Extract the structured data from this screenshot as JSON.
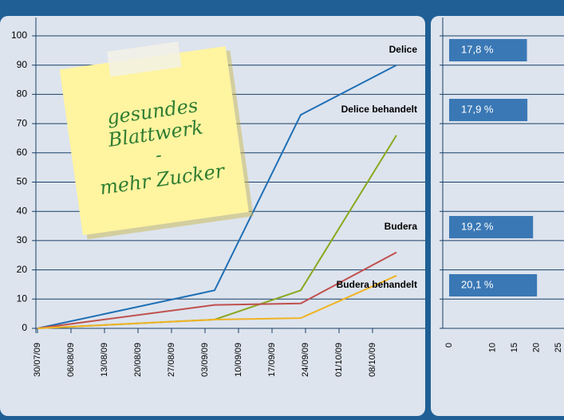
{
  "chart_data": [
    {
      "type": "line",
      "xlim": [
        "2009-07-30",
        "2009-10-18"
      ],
      "xticks": [
        {
          "value": "2009-07-30",
          "label": "30/07/09"
        },
        {
          "value": "2009-08-06",
          "label": "06/08/09"
        },
        {
          "value": "2009-08-13",
          "label": "13/08/09"
        },
        {
          "value": "2009-08-20",
          "label": "20/08/09"
        },
        {
          "value": "2009-08-27",
          "label": "27/08/09"
        },
        {
          "value": "2009-09-03",
          "label": "03/09/09"
        },
        {
          "value": "2009-09-10",
          "label": "10/09/09"
        },
        {
          "value": "2009-09-17",
          "label": "17/09/09"
        },
        {
          "value": "2009-09-24",
          "label": "24/09/09"
        },
        {
          "value": "2009-10-01",
          "label": "01/10/09"
        },
        {
          "value": "2009-10-08",
          "label": "08/10/09"
        }
      ],
      "ylim": [
        0,
        100
      ],
      "yticks": [
        0,
        10,
        20,
        30,
        40,
        50,
        60,
        70,
        80,
        90,
        100
      ],
      "grid": true,
      "x": [
        "2009-07-30",
        "2009-09-05",
        "2009-09-23",
        "2009-10-13"
      ],
      "series": [
        {
          "name": "Delice",
          "color": "#1f6fb4",
          "values": [
            0,
            13,
            73,
            90
          ]
        },
        {
          "name": "Delice behandelt",
          "color": "#8aa81e",
          "values": [
            0,
            3,
            13,
            66
          ]
        },
        {
          "name": "Budera",
          "color": "#c0504d",
          "values": [
            0,
            8,
            8.5,
            26
          ]
        },
        {
          "name": "Budera behandelt",
          "color": "#f0b323",
          "values": [
            0,
            3,
            3.5,
            18
          ]
        }
      ],
      "annotations": [
        "gesundes",
        "Blattwerk",
        "-",
        "mehr Zucker"
      ]
    },
    {
      "type": "bar",
      "orientation": "horizontal",
      "categories": [
        null,
        null,
        null,
        null
      ],
      "values": [
        17.8,
        17.9,
        19.2,
        20.1
      ],
      "value_labels": [
        "17,8 %",
        "17,9 %",
        "19,2 %",
        "20,1 %"
      ],
      "color": "#3a78b5",
      "xlim": [
        0,
        25
      ],
      "xticks": [
        0,
        10,
        15,
        20,
        25
      ]
    }
  ]
}
